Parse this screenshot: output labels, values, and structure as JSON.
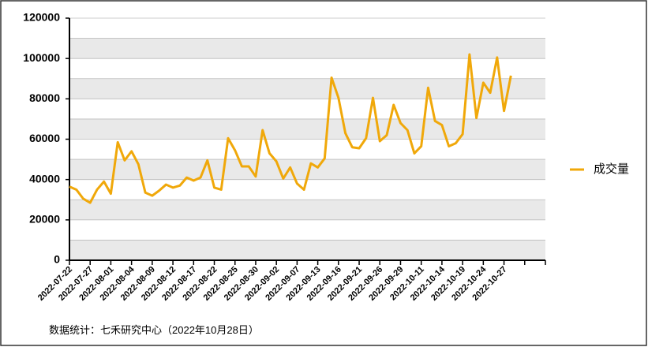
{
  "chart_data": {
    "type": "line",
    "categories": [
      "2022-07-22",
      null,
      null,
      "2022-07-27",
      null,
      null,
      "2022-08-01",
      null,
      null,
      "2022-08-04",
      null,
      null,
      "2022-08-09",
      null,
      null,
      "2022-08-12",
      null,
      null,
      "2022-08-17",
      null,
      null,
      "2022-08-22",
      null,
      null,
      "2022-08-25",
      null,
      null,
      "2022-08-30",
      null,
      null,
      "2022-09-02",
      null,
      null,
      "2022-09-07",
      null,
      null,
      "2022-09-13",
      null,
      null,
      "2022-09-16",
      null,
      null,
      "2022-09-21",
      null,
      null,
      "2022-09-26",
      null,
      null,
      "2022-09-29",
      null,
      null,
      "2022-10-11",
      null,
      null,
      "2022-10-14",
      null,
      null,
      "2022-10-19",
      null,
      null,
      "2022-10-24",
      null,
      null,
      "2022-10-27",
      null,
      null,
      null,
      null,
      null,
      null
    ],
    "series": [
      {
        "name": "成交量",
        "color": "#f0a80a",
        "values": [
          36500,
          35000,
          30500,
          28500,
          35000,
          39000,
          33000,
          58500,
          49500,
          54000,
          47500,
          33500,
          32000,
          34500,
          37500,
          36000,
          37000,
          41000,
          39500,
          41000,
          49500,
          36000,
          35000,
          60500,
          54500,
          46500,
          46500,
          41500,
          64500,
          53000,
          49000,
          40500,
          46000,
          38000,
          35000,
          48000,
          46000,
          50500,
          90500,
          80500,
          63000,
          56000,
          55500,
          60500,
          80500,
          59000,
          62000,
          77000,
          68000,
          64500,
          53000,
          56500,
          85500,
          69000,
          67000,
          56500,
          58000,
          62500,
          102000,
          70500,
          88000,
          83000,
          100500,
          74000,
          91500,
          null,
          null,
          null,
          null,
          null
        ]
      }
    ],
    "ylim": [
      0,
      120000
    ],
    "yticks": [
      0,
      20000,
      40000,
      60000,
      80000,
      100000,
      120000
    ],
    "grid": true,
    "legend": "right",
    "footnote": "数据统计：七禾研究中心（2022年10月28日）"
  }
}
